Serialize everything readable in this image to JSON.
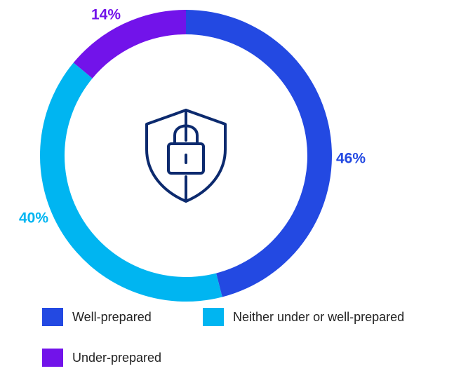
{
  "chart_data": {
    "type": "pie",
    "style": "donut",
    "title": "",
    "categories": [
      "Well-prepared",
      "Neither under or well-prepared",
      "Under-prepared"
    ],
    "values": [
      46,
      40,
      14
    ],
    "labels": [
      "46%",
      "40%",
      "14%"
    ],
    "colors": [
      "#2349e2",
      "#00b5f1",
      "#7213ea"
    ],
    "legend_position": "bottom",
    "center_icon": "shield-lock-icon"
  },
  "legend": {
    "items": [
      {
        "label": "Well-prepared",
        "color": "#2349e2"
      },
      {
        "label": "Neither under or well-prepared",
        "color": "#00b5f1"
      },
      {
        "label": "Under-prepared",
        "color": "#7213ea"
      }
    ]
  },
  "icon_color": "#0c2a6e"
}
